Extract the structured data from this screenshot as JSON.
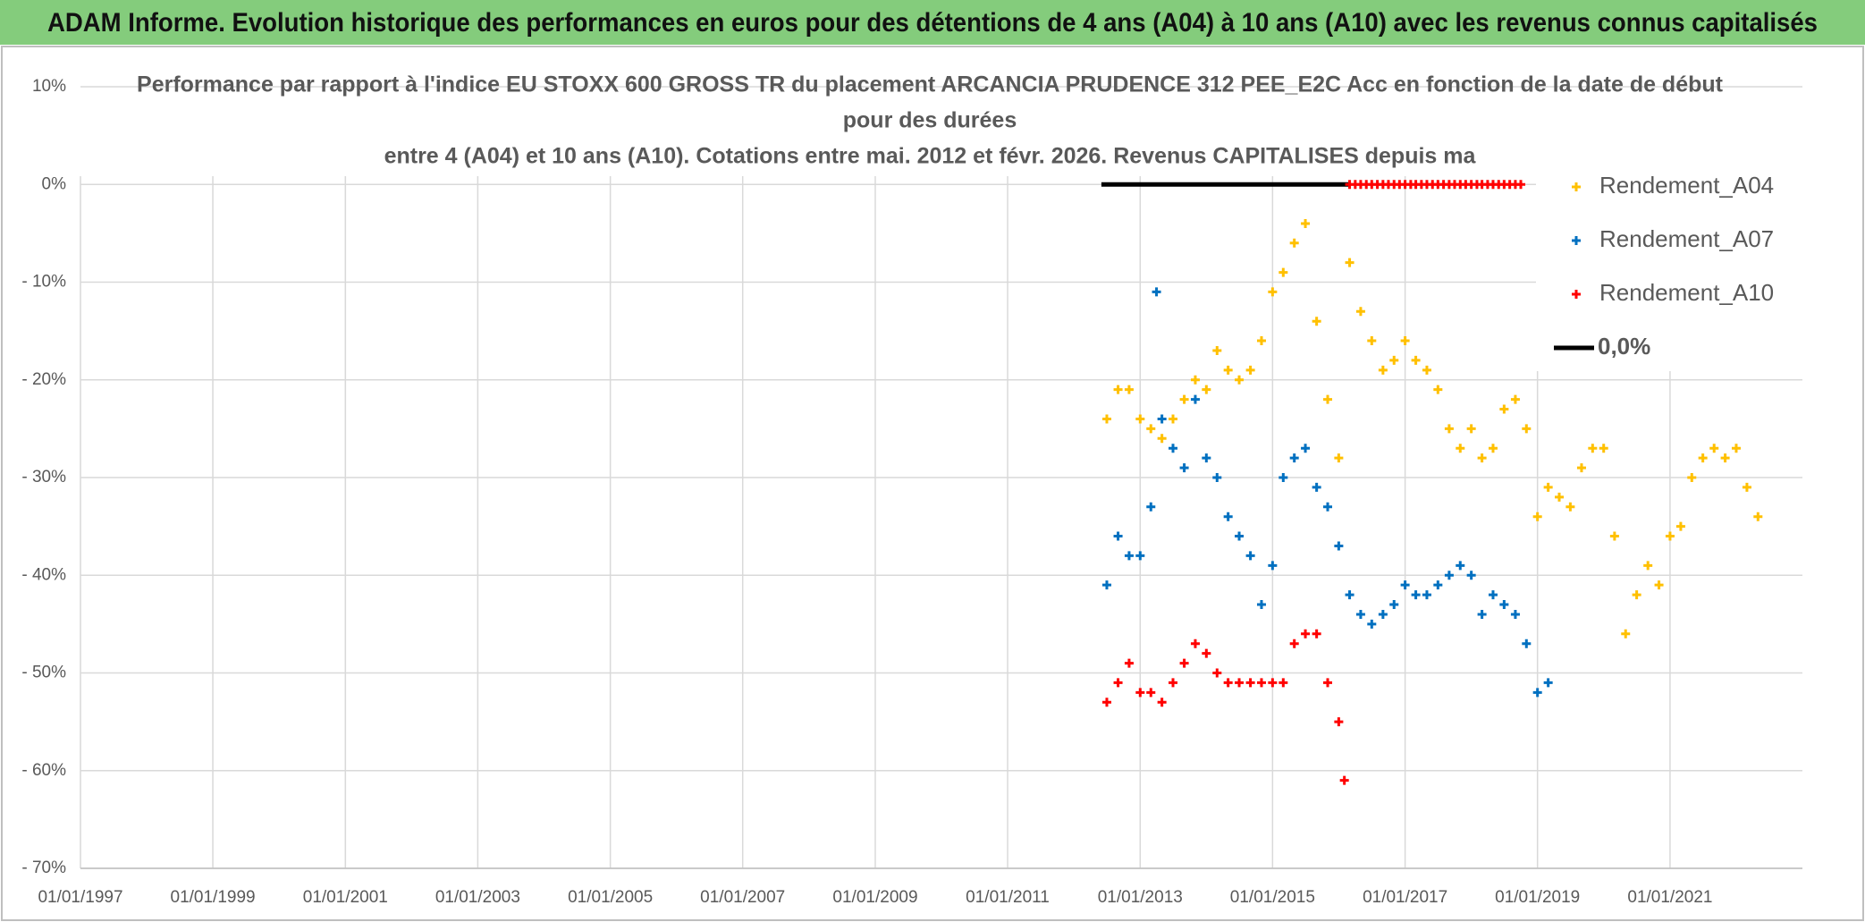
{
  "header": {
    "title": "ADAM Informe. Evolution historique des performances en euros pour des détentions de 4 ans (A04) à 10 ans (A10) avec les revenus connus capitalisés"
  },
  "chart_data": {
    "type": "scatter",
    "title": [
      "Performance par rapport à l'indice EU STOXX 600 GROSS TR  du placement ARCANCIA PRUDENCE 312 PEE_E2C Acc en fonction de la date de début",
      "pour des durées",
      "entre 4 (A04) et 10 ans (A10). Cotations entre mai. 2012 et févr. 2026. Revenus CAPITALISES depuis ma"
    ],
    "xlim": [
      "1997-01-01",
      "2023-01-01"
    ],
    "xticks": [
      {
        "value": "1997-01-01",
        "label": "01/01/1997"
      },
      {
        "value": "1999-01-01",
        "label": "01/01/1999"
      },
      {
        "value": "2001-01-01",
        "label": "01/01/2001"
      },
      {
        "value": "2003-01-01",
        "label": "01/01/2003"
      },
      {
        "value": "2005-01-01",
        "label": "01/01/2005"
      },
      {
        "value": "2007-01-01",
        "label": "01/01/2007"
      },
      {
        "value": "2009-01-01",
        "label": "01/01/2009"
      },
      {
        "value": "2011-01-01",
        "label": "01/01/2011"
      },
      {
        "value": "2013-01-01",
        "label": "01/01/2013"
      },
      {
        "value": "2015-01-01",
        "label": "01/01/2015"
      },
      {
        "value": "2017-01-01",
        "label": "01/01/2017"
      },
      {
        "value": "2019-01-01",
        "label": "01/01/2019"
      },
      {
        "value": "2021-01-01",
        "label": "01/01/2021"
      }
    ],
    "ylim": [
      -70,
      10
    ],
    "yticks": [
      {
        "value": 10,
        "label": "10%"
      },
      {
        "value": 0,
        "label": "0%"
      },
      {
        "value": -10,
        "label": "- 10%"
      },
      {
        "value": -20,
        "label": "- 20%"
      },
      {
        "value": -30,
        "label": "- 30%"
      },
      {
        "value": -40,
        "label": "- 40%"
      },
      {
        "value": -50,
        "label": "- 50%"
      },
      {
        "value": -60,
        "label": "- 60%"
      },
      {
        "value": -70,
        "label": "- 70%"
      }
    ],
    "grid": true,
    "legend": "upper right",
    "series": [
      {
        "name": "Rendement_A04",
        "color": "#ffc000",
        "x": [
          "2012-07-01",
          "2012-09-01",
          "2012-11-01",
          "2013-01-01",
          "2013-03-01",
          "2013-05-01",
          "2013-07-01",
          "2013-09-01",
          "2013-11-01",
          "2014-01-01",
          "2014-03-01",
          "2014-05-01",
          "2014-07-01",
          "2014-09-01",
          "2014-11-01",
          "2015-01-01",
          "2015-03-01",
          "2015-05-01",
          "2015-07-01",
          "2015-09-01",
          "2015-11-01",
          "2016-01-01",
          "2016-03-01",
          "2016-05-01",
          "2016-07-01",
          "2016-09-01",
          "2016-11-01",
          "2017-01-01",
          "2017-03-01",
          "2017-05-01",
          "2017-07-01",
          "2017-09-01",
          "2017-11-01",
          "2018-01-01",
          "2018-03-01",
          "2018-05-01",
          "2018-07-01",
          "2018-09-01",
          "2018-11-01",
          "2019-01-01",
          "2019-03-01",
          "2019-05-01",
          "2019-07-01",
          "2019-09-01",
          "2019-11-01",
          "2020-01-01",
          "2020-03-01",
          "2020-05-01",
          "2020-07-01",
          "2020-09-01",
          "2020-11-01",
          "2021-01-01",
          "2021-03-01",
          "2021-05-01",
          "2021-07-01",
          "2021-09-01",
          "2021-11-01",
          "2022-01-01",
          "2022-03-01",
          "2022-05-01"
        ],
        "values": [
          -24,
          -21,
          -21,
          -24,
          -25,
          -26,
          -24,
          -22,
          -20,
          -21,
          -17,
          -19,
          -20,
          -19,
          -16,
          -11,
          -9,
          -6,
          -4,
          -14,
          -22,
          -28,
          -8,
          -13,
          -16,
          -19,
          -18,
          -16,
          -18,
          -19,
          -21,
          -25,
          -27,
          -25,
          -28,
          -27,
          -23,
          -22,
          -25,
          -34,
          -31,
          -32,
          -33,
          -29,
          -27,
          -27,
          -36,
          -46,
          -42,
          -39,
          -41,
          -36,
          -35,
          -30,
          -28,
          -27,
          -28,
          -27,
          -31,
          -34
        ]
      },
      {
        "name": "Rendement_A07",
        "color": "#0070c0",
        "x": [
          "2012-07-01",
          "2012-09-01",
          "2012-11-01",
          "2013-01-01",
          "2013-03-01",
          "2013-04-01",
          "2013-05-01",
          "2013-07-01",
          "2013-09-01",
          "2013-11-01",
          "2014-01-01",
          "2014-03-01",
          "2014-05-01",
          "2014-07-01",
          "2014-09-01",
          "2014-11-01",
          "2015-01-01",
          "2015-03-01",
          "2015-05-01",
          "2015-07-01",
          "2015-09-01",
          "2015-11-01",
          "2016-01-01",
          "2016-03-01",
          "2016-05-01",
          "2016-07-01",
          "2016-09-01",
          "2016-11-01",
          "2017-01-01",
          "2017-03-01",
          "2017-05-01",
          "2017-07-01",
          "2017-09-01",
          "2017-11-01",
          "2018-01-01",
          "2018-03-01",
          "2018-05-01",
          "2018-07-01",
          "2018-09-01",
          "2018-11-01",
          "2019-01-01",
          "2019-03-01"
        ],
        "values": [
          -41,
          -36,
          -38,
          -38,
          -33,
          -11,
          -24,
          -27,
          -29,
          -22,
          -28,
          -30,
          -34,
          -36,
          -38,
          -43,
          -39,
          -30,
          -28,
          -27,
          -31,
          -33,
          -37,
          -42,
          -44,
          -45,
          -44,
          -43,
          -41,
          -42,
          -42,
          -41,
          -40,
          -39,
          -40,
          -44,
          -42,
          -43,
          -44,
          -47,
          -52,
          -51
        ]
      },
      {
        "name": "Rendement_A10",
        "color": "#ff0000",
        "x": [
          "2012-07-01",
          "2012-09-01",
          "2012-11-01",
          "2013-01-01",
          "2013-03-01",
          "2013-05-01",
          "2013-07-01",
          "2013-09-01",
          "2013-11-01",
          "2014-01-01",
          "2014-03-01",
          "2014-05-01",
          "2014-07-01",
          "2014-09-01",
          "2014-11-01",
          "2015-01-01",
          "2015-03-01",
          "2015-05-01",
          "2015-07-01",
          "2015-09-01",
          "2015-11-01",
          "2016-01-01",
          "2016-02-01",
          "2016-03-01",
          "2016-04-01",
          "2016-05-01",
          "2016-06-01",
          "2016-07-01",
          "2016-08-01",
          "2016-09-01",
          "2016-10-01",
          "2016-11-01",
          "2016-12-01",
          "2017-01-01",
          "2017-02-01",
          "2017-03-01",
          "2017-04-01",
          "2017-05-01",
          "2017-06-01",
          "2017-07-01",
          "2017-08-01",
          "2017-09-01",
          "2017-10-01",
          "2017-11-01",
          "2017-12-01",
          "2018-01-01",
          "2018-02-01",
          "2018-03-01",
          "2018-04-01",
          "2018-05-01",
          "2018-06-01",
          "2018-07-01",
          "2018-08-01",
          "2018-09-01",
          "2018-10-01"
        ],
        "values": [
          -53,
          -51,
          -49,
          -52,
          -52,
          -53,
          -51,
          -49,
          -47,
          -48,
          -50,
          -51,
          -51,
          -51,
          -51,
          -51,
          -51,
          -47,
          -46,
          -46,
          -51,
          -55,
          -61,
          0,
          0,
          0,
          0,
          0,
          0,
          0,
          0,
          0,
          0,
          0,
          0,
          0,
          0,
          0,
          0,
          0,
          0,
          0,
          0,
          0,
          0,
          0,
          0,
          0,
          0,
          0,
          0,
          0,
          0,
          0,
          0
        ]
      },
      {
        "name": "0,0%",
        "color": "#000000",
        "type": "line",
        "x": [
          "2012-06-01",
          "2016-03-01"
        ],
        "values": [
          0,
          0
        ]
      }
    ]
  }
}
